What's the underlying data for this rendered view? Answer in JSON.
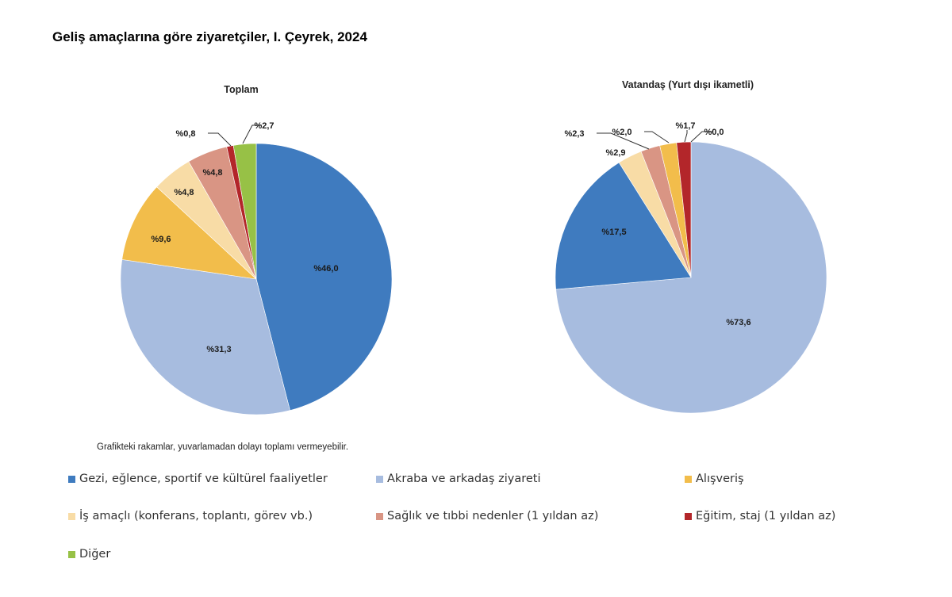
{
  "title": "Geliş amaçlarına göre ziyaretçiler, I. Çeyrek, 2024",
  "note": "Grafikteki rakamlar, yuvarlamadan dolayı toplamı vermeyebilir.",
  "categories": [
    {
      "key": "gezi",
      "name": "Gezi, eğlence, sportif ve kültürel faaliyetler",
      "color": "#3f7bbf"
    },
    {
      "key": "akraba",
      "name": "Akraba ve arkadaş ziyareti",
      "color": "#a7bcdf"
    },
    {
      "key": "alisveris",
      "name": "Alışveriş",
      "color": "#f2bd4b"
    },
    {
      "key": "is",
      "name": "İş amaçlı (konferans, toplantı, görev vb.)",
      "color": "#f8dca6"
    },
    {
      "key": "saglik",
      "name": "Sağlık ve tıbbi nedenler (1 yıldan az)",
      "color": "#d99584"
    },
    {
      "key": "egitim",
      "name": "Eğitim, staj (1 yıldan az)",
      "color": "#b3262a"
    },
    {
      "key": "diger",
      "name": "Diğer",
      "color": "#97c146"
    }
  ],
  "chart_data": [
    {
      "type": "pie",
      "title": "Toplam",
      "direction": "clockwise-from-top",
      "slices": [
        {
          "key": "gezi",
          "value": 46.0,
          "label": "%46,0"
        },
        {
          "key": "akraba",
          "value": 31.3,
          "label": "%31,3"
        },
        {
          "key": "alisveris",
          "value": 9.6,
          "label": "%9,6"
        },
        {
          "key": "is",
          "value": 4.8,
          "label": "%4,8"
        },
        {
          "key": "saglik",
          "value": 4.8,
          "label": "%4,8"
        },
        {
          "key": "egitim",
          "value": 0.8,
          "label": "%0,8"
        },
        {
          "key": "diger",
          "value": 2.7,
          "label": "%2,7"
        }
      ]
    },
    {
      "type": "pie",
      "title": "Vatandaş (Yurt dışı ikametli)",
      "direction": "clockwise-from-top",
      "slices": [
        {
          "key": "akraba",
          "value": 73.6,
          "label": "%73,6"
        },
        {
          "key": "gezi",
          "value": 17.5,
          "label": "%17,5"
        },
        {
          "key": "is",
          "value": 2.9,
          "label": "%2,9"
        },
        {
          "key": "saglik",
          "value": 2.3,
          "label": "%2,3"
        },
        {
          "key": "alisveris",
          "value": 2.0,
          "label": "%2,0"
        },
        {
          "key": "egitim",
          "value": 1.7,
          "label": "%1,7"
        },
        {
          "key": "diger",
          "value": 0.0,
          "label": "%0,0"
        }
      ]
    }
  ]
}
